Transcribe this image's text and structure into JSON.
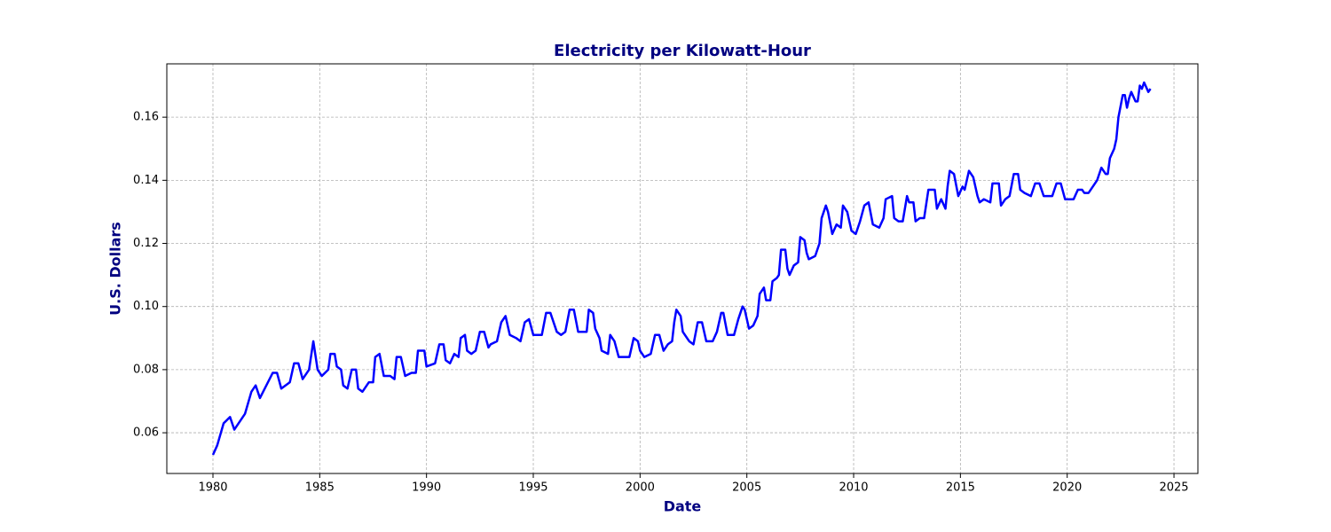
{
  "chart_data": {
    "type": "line",
    "title": "Electricity per Kilowatt-Hour",
    "x_label": "Date",
    "y_label": "U.S. Dollars",
    "color": "#0000ff",
    "grid": true,
    "xlim": [
      1977.84,
      2026.12
    ],
    "ylim": [
      0.0471,
      0.1769
    ],
    "xticks": [
      1980,
      1985,
      1990,
      1995,
      2000,
      2005,
      2010,
      2015,
      2020,
      2025
    ],
    "yticks": [
      0.06,
      0.08,
      {
        "value": 0.1,
        "label": "0.10"
      },
      0.12,
      0.14,
      0.16
    ],
    "x": [
      1980.0,
      1980.2,
      1980.5,
      1980.8,
      1981.0,
      1981.5,
      1981.8,
      1982.0,
      1982.2,
      1982.5,
      1982.8,
      1983.0,
      1983.2,
      1983.6,
      1983.8,
      1984.0,
      1984.2,
      1984.5,
      1984.7,
      1984.9,
      1985.1,
      1985.4,
      1985.5,
      1985.7,
      1985.8,
      1986.0,
      1986.1,
      1986.3,
      1986.5,
      1986.7,
      1986.8,
      1987.0,
      1987.3,
      1987.5,
      1987.6,
      1987.8,
      1988.0,
      1988.3,
      1988.5,
      1988.6,
      1988.8,
      1989.0,
      1989.3,
      1989.5,
      1989.6,
      1989.9,
      1990.0,
      1990.4,
      1990.6,
      1990.8,
      1990.9,
      1991.1,
      1991.3,
      1991.5,
      1991.6,
      1991.8,
      1991.9,
      1992.1,
      1992.3,
      1992.5,
      1992.7,
      1992.9,
      1993.0,
      1993.3,
      1993.5,
      1993.7,
      1993.9,
      1994.2,
      1994.4,
      1994.6,
      1994.8,
      1995.0,
      1995.3,
      1995.4,
      1995.6,
      1995.8,
      1996.1,
      1996.3,
      1996.5,
      1996.7,
      1996.9,
      1997.1,
      1997.3,
      1997.5,
      1997.6,
      1997.8,
      1997.9,
      1998.1,
      1998.2,
      1998.5,
      1998.6,
      1998.8,
      1999.0,
      1999.3,
      1999.5,
      1999.7,
      1999.9,
      2000.0,
      2000.2,
      2000.5,
      2000.7,
      2000.9,
      2001.1,
      2001.3,
      2001.5,
      2001.6,
      2001.7,
      2001.9,
      2002.0,
      2002.3,
      2002.5,
      2002.7,
      2002.9,
      2003.1,
      2003.4,
      2003.6,
      2003.8,
      2003.9,
      2004.1,
      2004.4,
      2004.6,
      2004.8,
      2004.9,
      2005.1,
      2005.3,
      2005.5,
      2005.6,
      2005.8,
      2005.9,
      2006.1,
      2006.2,
      2006.4,
      2006.5,
      2006.6,
      2006.8,
      2006.9,
      2007.0,
      2007.2,
      2007.4,
      2007.5,
      2007.7,
      2007.8,
      2007.9,
      2008.2,
      2008.4,
      2008.5,
      2008.7,
      2008.8,
      2009.0,
      2009.2,
      2009.4,
      2009.5,
      2009.7,
      2009.9,
      2010.1,
      2010.3,
      2010.5,
      2010.7,
      2010.9,
      2011.2,
      2011.4,
      2011.5,
      2011.8,
      2011.9,
      2012.1,
      2012.3,
      2012.5,
      2012.6,
      2012.8,
      2012.9,
      2013.1,
      2013.3,
      2013.5,
      2013.8,
      2013.9,
      2014.1,
      2014.3,
      2014.4,
      2014.5,
      2014.7,
      2014.9,
      2015.1,
      2015.2,
      2015.4,
      2015.6,
      2015.8,
      2015.9,
      2016.1,
      2016.4,
      2016.5,
      2016.8,
      2016.9,
      2017.1,
      2017.3,
      2017.5,
      2017.7,
      2017.8,
      2018.0,
      2018.3,
      2018.5,
      2018.7,
      2018.9,
      2019.1,
      2019.3,
      2019.5,
      2019.7,
      2019.9,
      2020.1,
      2020.3,
      2020.5,
      2020.7,
      2020.8,
      2021.0,
      2021.2,
      2021.4,
      2021.6,
      2021.8,
      2021.9,
      2022.0,
      2022.2,
      2022.3,
      2022.4,
      2022.6,
      2022.7,
      2022.8,
      2022.9,
      2023.0,
      2023.2,
      2023.3,
      2023.4,
      2023.5,
      2023.6,
      2023.8,
      2023.9
    ],
    "values": [
      0.053,
      0.056,
      0.063,
      0.065,
      0.061,
      0.066,
      0.073,
      0.075,
      0.071,
      0.075,
      0.079,
      0.079,
      0.074,
      0.076,
      0.082,
      0.082,
      0.077,
      0.08,
      0.089,
      0.08,
      0.078,
      0.08,
      0.085,
      0.085,
      0.081,
      0.08,
      0.075,
      0.074,
      0.08,
      0.08,
      0.074,
      0.073,
      0.076,
      0.076,
      0.084,
      0.085,
      0.078,
      0.078,
      0.077,
      0.084,
      0.084,
      0.078,
      0.079,
      0.079,
      0.086,
      0.086,
      0.081,
      0.082,
      0.088,
      0.088,
      0.083,
      0.082,
      0.085,
      0.084,
      0.09,
      0.091,
      0.086,
      0.085,
      0.086,
      0.092,
      0.092,
      0.087,
      0.088,
      0.089,
      0.095,
      0.097,
      0.091,
      0.09,
      0.089,
      0.095,
      0.096,
      0.091,
      0.091,
      0.091,
      0.098,
      0.098,
      0.092,
      0.091,
      0.092,
      0.099,
      0.099,
      0.092,
      0.092,
      0.092,
      0.099,
      0.098,
      0.093,
      0.09,
      0.086,
      0.085,
      0.091,
      0.089,
      0.084,
      0.084,
      0.084,
      0.09,
      0.089,
      0.086,
      0.084,
      0.085,
      0.091,
      0.091,
      0.086,
      0.088,
      0.089,
      0.095,
      0.099,
      0.097,
      0.092,
      0.089,
      0.088,
      0.095,
      0.095,
      0.089,
      0.089,
      0.092,
      0.098,
      0.098,
      0.091,
      0.091,
      0.096,
      0.1,
      0.099,
      0.093,
      0.094,
      0.097,
      0.104,
      0.106,
      0.102,
      0.102,
      0.108,
      0.109,
      0.11,
      0.118,
      0.118,
      0.112,
      0.11,
      0.113,
      0.114,
      0.122,
      0.121,
      0.117,
      0.115,
      0.116,
      0.12,
      0.128,
      0.132,
      0.13,
      0.123,
      0.126,
      0.125,
      0.132,
      0.13,
      0.124,
      0.123,
      0.127,
      0.132,
      0.133,
      0.126,
      0.125,
      0.128,
      0.134,
      0.135,
      0.128,
      0.127,
      0.127,
      0.135,
      0.133,
      0.133,
      0.127,
      0.128,
      0.128,
      0.137,
      0.137,
      0.131,
      0.134,
      0.131,
      0.138,
      0.143,
      0.142,
      0.135,
      0.138,
      0.137,
      0.143,
      0.141,
      0.135,
      0.133,
      0.134,
      0.133,
      0.139,
      0.139,
      0.132,
      0.134,
      0.135,
      0.142,
      0.142,
      0.137,
      0.136,
      0.135,
      0.139,
      0.139,
      0.135,
      0.135,
      0.135,
      0.139,
      0.139,
      0.134,
      0.134,
      0.134,
      0.137,
      0.137,
      0.136,
      0.136,
      0.138,
      0.14,
      0.144,
      0.142,
      0.142,
      0.147,
      0.15,
      0.153,
      0.16,
      0.167,
      0.167,
      0.163,
      0.166,
      0.168,
      0.165,
      0.165,
      0.17,
      0.169,
      0.171,
      0.168,
      0.169
    ]
  }
}
